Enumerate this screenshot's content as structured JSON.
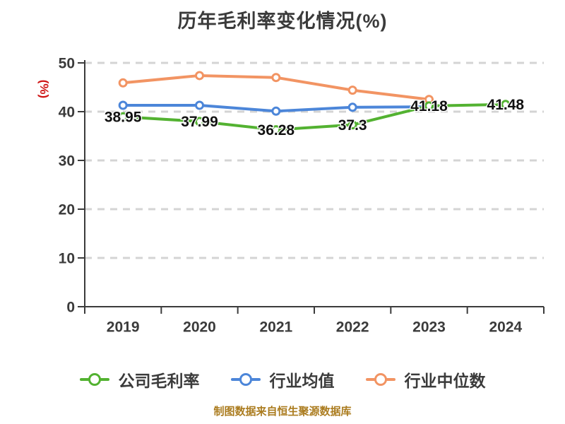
{
  "title": "历年毛利率变化情况(%)",
  "y_axis_label": "(%)",
  "caption": "制图数据来自恒生聚源数据库",
  "colors": {
    "axis": "#3b3b3b",
    "grid": "#d4d4d4",
    "tick_text": "#3b3b3b",
    "data_label": "#111111",
    "unit_label": "#cf1515",
    "caption_text": "#ab7c1f",
    "background": "#ffffff"
  },
  "chart_data": {
    "type": "line",
    "categories": [
      "2019",
      "2020",
      "2021",
      "2022",
      "2023",
      "2024"
    ],
    "y_ticks": [
      0,
      10,
      20,
      30,
      40,
      50
    ],
    "ylim": [
      0,
      50
    ],
    "grid": "horizontal-dashed",
    "legend_position": "bottom",
    "series": [
      {
        "name": "公司毛利率",
        "color": "#53b231",
        "values": [
          38.95,
          37.99,
          36.28,
          37.3,
          41.18,
          41.48
        ],
        "point_labels": [
          "38.95",
          "37.99",
          "36.28",
          "37.3",
          "41.18",
          "41.48"
        ],
        "labels_shown": true
      },
      {
        "name": "行业均值",
        "color": "#4c86d9",
        "values": [
          41.3,
          41.3,
          40.1,
          40.9,
          41.0,
          null
        ],
        "labels_shown": false
      },
      {
        "name": "行业中位数",
        "color": "#f29463",
        "values": [
          45.9,
          47.4,
          47.0,
          44.4,
          42.5,
          null
        ],
        "labels_shown": false
      }
    ]
  }
}
